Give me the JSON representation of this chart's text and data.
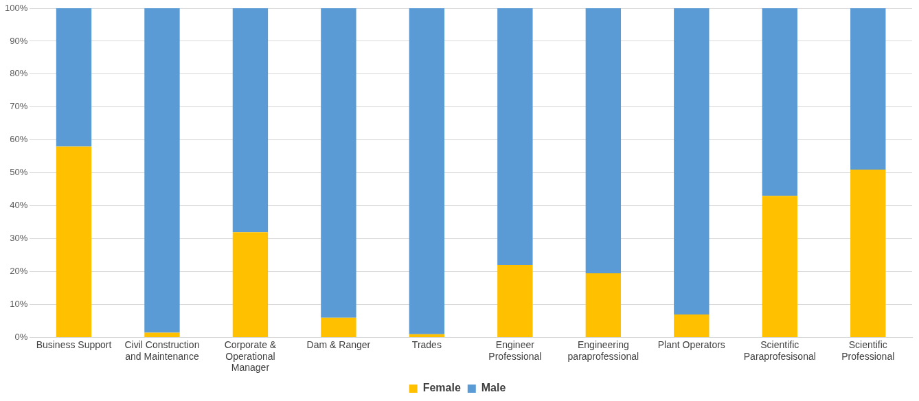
{
  "chart_data": {
    "type": "bar",
    "stacked": true,
    "categories": [
      "Business Support",
      "Civil Construction and Maintenance",
      "Corporate & Operational Manager",
      "Dam & Ranger",
      "Trades",
      "Engineer Professional",
      "Engineering paraprofessional",
      "Plant Operators",
      "Scientific Paraprofesisonal",
      "Scientific Professional"
    ],
    "series": [
      {
        "name": "Female",
        "color": "#ffc000",
        "values": [
          58,
          1.5,
          32,
          6,
          1,
          22,
          19.5,
          7,
          43,
          51
        ]
      },
      {
        "name": "Male",
        "color": "#5b9bd5",
        "values": [
          42,
          98.5,
          68,
          94,
          99,
          78,
          80.5,
          93,
          57,
          49
        ]
      }
    ],
    "ylim": [
      0,
      100
    ],
    "yticks": [
      {
        "value": 0,
        "label": "0%"
      },
      {
        "value": 10,
        "label": "10%"
      },
      {
        "value": 20,
        "label": "20%"
      },
      {
        "value": 30,
        "label": "30%"
      },
      {
        "value": 40,
        "label": "40%"
      },
      {
        "value": 50,
        "label": "50%"
      },
      {
        "value": 60,
        "label": "60%"
      },
      {
        "value": 70,
        "label": "70%"
      },
      {
        "value": 80,
        "label": "80%"
      },
      {
        "value": 90,
        "label": "90%"
      },
      {
        "value": 100,
        "label": "100%"
      }
    ],
    "grid": "y",
    "legend": "bottom"
  }
}
